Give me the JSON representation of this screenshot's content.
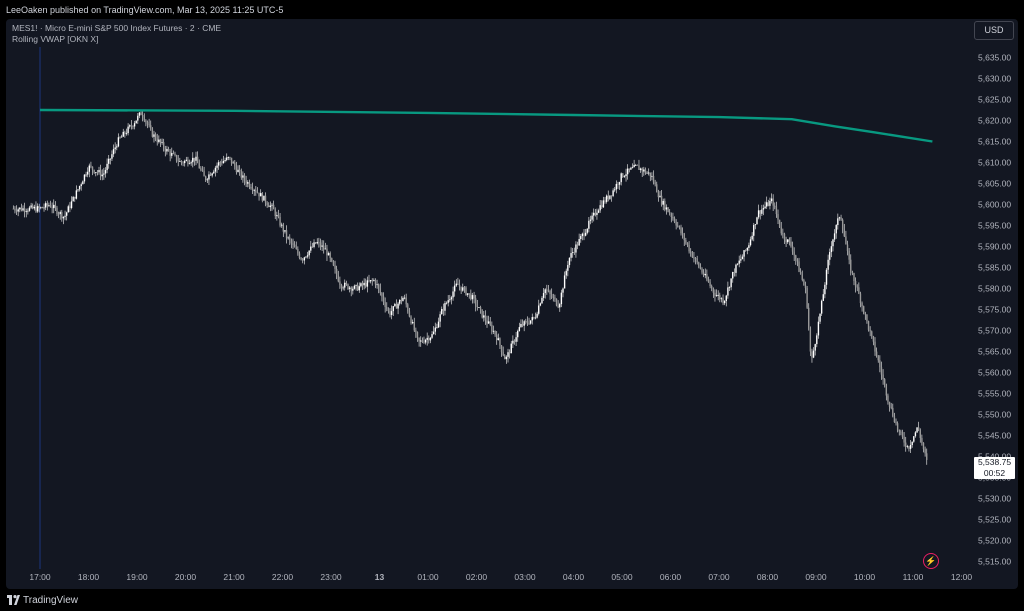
{
  "header": {
    "published": "LeeOaken published on TradingView.com, Mar 13, 2025 11:25 UTC-5"
  },
  "legend": {
    "symbol_line": "MES1! · Micro E-mini S&P 500 Index Futures · 2 · CME",
    "indicator": "Rolling VWAP [OKN X]"
  },
  "currency": "USD",
  "last_price": {
    "price": "5,538.75",
    "countdown": "00:52"
  },
  "footer": {
    "brand": "TradingView"
  },
  "colors": {
    "background": "#131722",
    "candles": "#d9d9d9",
    "vwap": "#089981",
    "alert": "#e91e63"
  },
  "icons": {
    "alert": "lightning-icon",
    "logo": "tradingview-logo"
  },
  "chart_data": {
    "type": "candlestick",
    "y_axis": {
      "ticks": [
        "5,635.00",
        "5,630.00",
        "5,625.00",
        "5,620.00",
        "5,615.00",
        "5,610.00",
        "5,605.00",
        "5,600.00",
        "5,595.00",
        "5,590.00",
        "5,585.00",
        "5,580.00",
        "5,575.00",
        "5,570.00",
        "5,565.00",
        "5,560.00",
        "5,555.00",
        "5,550.00",
        "5,545.00",
        "5,540.00",
        "5,535.00",
        "5,530.00",
        "5,525.00",
        "5,520.00",
        "5,515.00"
      ],
      "range": [
        5513,
        5637
      ]
    },
    "x_axis": {
      "ticks": [
        "17:00",
        "18:00",
        "19:00",
        "20:00",
        "21:00",
        "22:00",
        "23:00",
        "13",
        "01:00",
        "02:00",
        "03:00",
        "04:00",
        "05:00",
        "06:00",
        "07:00",
        "08:00",
        "09:00",
        "10:00",
        "11:00",
        "12:00"
      ]
    },
    "price_anchors": [
      [
        0,
        5599
      ],
      [
        0.2,
        5600
      ],
      [
        0.5,
        5597
      ],
      [
        0.8,
        5604
      ],
      [
        1.0,
        5609
      ],
      [
        1.3,
        5607
      ],
      [
        1.6,
        5615
      ],
      [
        1.9,
        5619
      ],
      [
        2.1,
        5622
      ],
      [
        2.3,
        5617
      ],
      [
        2.6,
        5613
      ],
      [
        2.9,
        5610
      ],
      [
        3.2,
        5611
      ],
      [
        3.4,
        5606
      ],
      [
        3.7,
        5610
      ],
      [
        3.9,
        5611
      ],
      [
        4.2,
        5606
      ],
      [
        4.4,
        5604
      ],
      [
        4.8,
        5599
      ],
      [
        5.1,
        5592
      ],
      [
        5.4,
        5587
      ],
      [
        5.7,
        5591
      ],
      [
        5.9,
        5589
      ],
      [
        6.2,
        5581
      ],
      [
        6.5,
        5580
      ],
      [
        6.9,
        5582
      ],
      [
        7.2,
        5574
      ],
      [
        7.5,
        5578
      ],
      [
        7.8,
        5567
      ],
      [
        8.1,
        5569
      ],
      [
        8.3,
        5575
      ],
      [
        8.6,
        5581
      ],
      [
        8.9,
        5578
      ],
      [
        9.1,
        5574
      ],
      [
        9.4,
        5569
      ],
      [
        9.6,
        5563
      ],
      [
        9.9,
        5571
      ],
      [
        10.2,
        5573
      ],
      [
        10.4,
        5580
      ],
      [
        10.7,
        5576
      ],
      [
        10.9,
        5587
      ],
      [
        11.2,
        5593
      ],
      [
        11.5,
        5599
      ],
      [
        11.8,
        5603
      ],
      [
        12.0,
        5607
      ],
      [
        12.3,
        5609
      ],
      [
        12.6,
        5607
      ],
      [
        12.8,
        5601
      ],
      [
        13.1,
        5596
      ],
      [
        13.4,
        5589
      ],
      [
        13.6,
        5585
      ],
      [
        13.9,
        5579
      ],
      [
        14.1,
        5577
      ],
      [
        14.3,
        5584
      ],
      [
        14.6,
        5590
      ],
      [
        14.8,
        5598
      ],
      [
        15.1,
        5601
      ],
      [
        15.3,
        5593
      ],
      [
        15.5,
        5590
      ],
      [
        15.8,
        5579
      ],
      [
        15.9,
        5562
      ],
      [
        16.1,
        5575
      ],
      [
        16.3,
        5590
      ],
      [
        16.5,
        5598
      ],
      [
        16.7,
        5585
      ],
      [
        16.9,
        5578
      ],
      [
        17.1,
        5570
      ],
      [
        17.3,
        5562
      ],
      [
        17.5,
        5553
      ],
      [
        17.7,
        5546
      ],
      [
        17.9,
        5542
      ],
      [
        18.1,
        5547
      ],
      [
        18.3,
        5538
      ]
    ],
    "vwap": [
      [
        0,
        5622.5
      ],
      [
        4,
        5622.3
      ],
      [
        8,
        5621.8
      ],
      [
        11,
        5621.3
      ],
      [
        14,
        5620.8
      ],
      [
        15.5,
        5620.3
      ],
      [
        16.4,
        5618.6
      ],
      [
        17.2,
        5617.2
      ],
      [
        18.4,
        5615.0
      ]
    ]
  }
}
